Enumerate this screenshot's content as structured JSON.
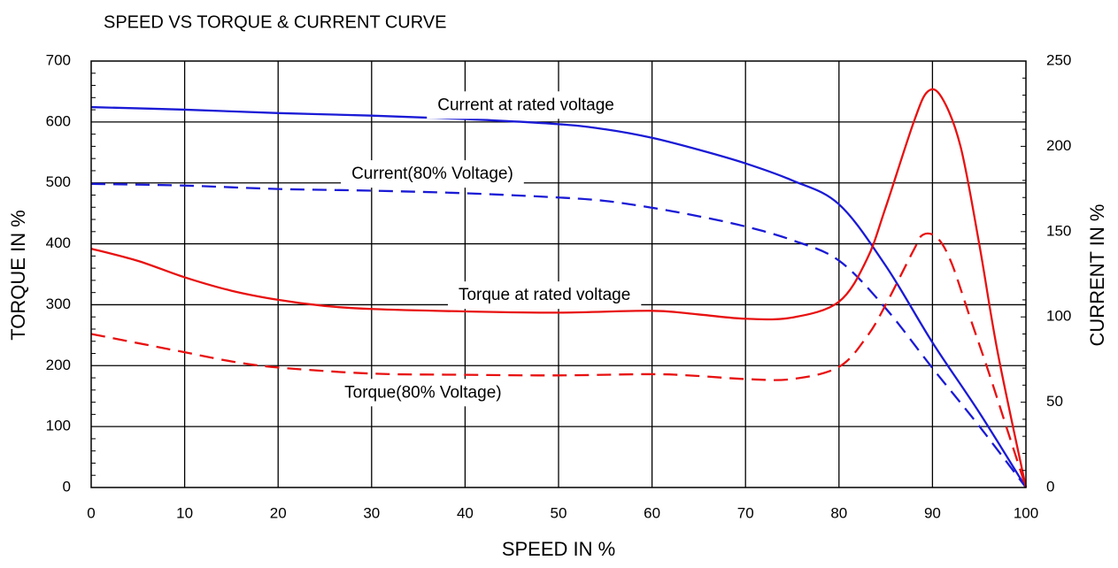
{
  "chart_data": {
    "type": "line",
    "title": "SPEED VS TORQUE & CURRENT CURVE",
    "xlabel": "SPEED IN %",
    "ylabel": "TORQUE IN %",
    "y2label": "CURRENT IN %",
    "xlim": [
      0,
      100
    ],
    "ylim": [
      0,
      700
    ],
    "y2lim": [
      0,
      250
    ],
    "xticks": [
      "0",
      "10",
      "20",
      "30",
      "40",
      "50",
      "60",
      "70",
      "80",
      "90",
      "100"
    ],
    "yticks": [
      "0",
      "100",
      "200",
      "300",
      "400",
      "500",
      "600",
      "700"
    ],
    "y2ticks": [
      "0",
      "50",
      "100",
      "150",
      "200",
      "250"
    ],
    "grid": true,
    "colors": {
      "torque": "#e81010",
      "current": "#1a1ad6"
    },
    "series": [
      {
        "name": "Current at rated voltage",
        "axis": "right",
        "style": "solid",
        "color": "#1a1ad6",
        "x": [
          0,
          10,
          20,
          30,
          40,
          50,
          55,
          60,
          65,
          70,
          75,
          80,
          85,
          90,
          95,
          100
        ],
        "y": [
          223,
          221.5,
          219.5,
          218,
          216,
          213,
          210,
          205,
          198,
          190,
          180,
          166,
          130,
          85,
          44,
          0
        ]
      },
      {
        "name": "Current(80% Voltage)",
        "axis": "right",
        "style": "dashed",
        "color": "#1a1ad6",
        "x": [
          0,
          10,
          20,
          30,
          40,
          50,
          55,
          60,
          65,
          70,
          75,
          80,
          85,
          90,
          95,
          100
        ],
        "y": [
          178,
          177,
          175,
          174,
          172.5,
          170,
          168,
          164,
          159,
          153,
          145,
          133,
          105,
          70,
          36,
          0
        ]
      },
      {
        "name": "Torque at rated voltage",
        "axis": "left",
        "style": "solid",
        "color": "#e81010",
        "x": [
          0,
          5,
          10,
          15,
          20,
          25,
          30,
          40,
          50,
          60,
          65,
          70,
          75,
          80,
          83,
          85,
          88,
          89.5,
          91,
          93,
          95,
          97,
          100
        ],
        "y": [
          392,
          372,
          345,
          323,
          308,
          298,
          293,
          289,
          287,
          290,
          284,
          277,
          279,
          305,
          375,
          460,
          600,
          650,
          640,
          560,
          400,
          220,
          0
        ]
      },
      {
        "name": "Torque(80% Voltage)",
        "axis": "left",
        "style": "dashed",
        "color": "#e81010",
        "x": [
          0,
          5,
          10,
          15,
          20,
          30,
          40,
          50,
          60,
          65,
          70,
          75,
          80,
          83,
          85,
          88,
          89,
          90.5,
          92,
          94,
          96,
          98,
          100
        ],
        "y": [
          252,
          237,
          222,
          207,
          197,
          187,
          185,
          184,
          186,
          183,
          178,
          178,
          198,
          248,
          300,
          390,
          415,
          410,
          370,
          280,
          190,
          95,
          0
        ]
      }
    ],
    "annotations": [
      {
        "text": "Current at rated voltage",
        "x": 46.5,
        "y": 627
      },
      {
        "text": "Current(80% Voltage)",
        "x": 36.5,
        "y": 514
      },
      {
        "text": "Torque at rated voltage",
        "x": 48.5,
        "y": 315
      },
      {
        "text": "Torque(80% Voltage)",
        "x": 35.5,
        "y": 155
      }
    ]
  }
}
